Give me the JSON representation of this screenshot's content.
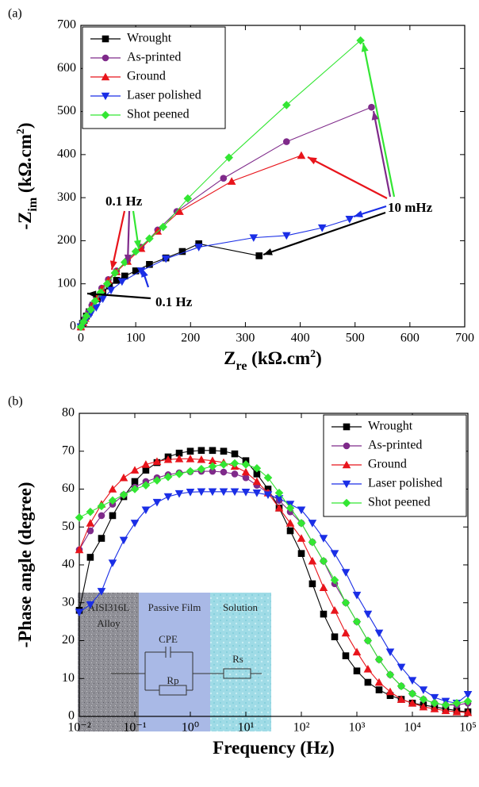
{
  "chart_data": [
    {
      "type": "scatter-line",
      "panel_label": "(a)",
      "x_label_parts": [
        "Z",
        "re",
        " (kΩ.cm",
        "2",
        ")"
      ],
      "y_label_parts": [
        "-Z",
        "im",
        " (kΩ.cm",
        "2",
        ")"
      ],
      "xlim": [
        0,
        700
      ],
      "ylim": [
        0,
        700
      ],
      "xticks": [
        0,
        100,
        200,
        300,
        400,
        500,
        600,
        700
      ],
      "yticks": [
        0,
        100,
        200,
        300,
        400,
        500,
        600,
        700
      ],
      "legend": "upper left",
      "annotations": [
        "0.1 Hz",
        "0.1 Hz",
        "10 mHz"
      ],
      "series": [
        {
          "name": "Wrought",
          "color": "#000000",
          "marker": "square",
          "x": [
            0,
            3,
            6,
            10,
            15,
            22,
            30,
            40,
            52,
            65,
            80,
            100,
            125,
            155,
            185,
            215,
            325
          ],
          "values": [
            0,
            8,
            15,
            25,
            35,
            50,
            65,
            80,
            95,
            108,
            118,
            130,
            145,
            160,
            175,
            193,
            165
          ]
        },
        {
          "name": "As-printed",
          "color": "#7f2a8a",
          "marker": "circle",
          "x": [
            0,
            4,
            8,
            14,
            20,
            28,
            38,
            50,
            65,
            85,
            110,
            140,
            175,
            260,
            375,
            530
          ],
          "values": [
            0,
            10,
            20,
            35,
            50,
            70,
            90,
            110,
            130,
            155,
            185,
            225,
            268,
            345,
            430,
            510
          ]
        },
        {
          "name": "Ground",
          "color": "#e8141b",
          "marker": "triangle-up",
          "x": [
            0,
            4,
            8,
            14,
            20,
            28,
            38,
            50,
            65,
            85,
            110,
            140,
            180,
            275,
            402
          ],
          "values": [
            0,
            10,
            20,
            34,
            48,
            67,
            88,
            108,
            128,
            152,
            182,
            222,
            268,
            338,
            398
          ]
        },
        {
          "name": "Laser polished",
          "color": "#1a2ee6",
          "marker": "triangle-down",
          "x": [
            0,
            5,
            10,
            18,
            28,
            40,
            55,
            75,
            110,
            155,
            215,
            315,
            375,
            440,
            490
          ],
          "values": [
            0,
            8,
            18,
            30,
            45,
            65,
            85,
            105,
            130,
            158,
            185,
            207,
            212,
            230,
            250
          ]
        },
        {
          "name": "Shot peened",
          "color": "#33e633",
          "marker": "diamond",
          "x": [
            0,
            5,
            10,
            18,
            26,
            36,
            48,
            62,
            80,
            100,
            125,
            150,
            195,
            270,
            375,
            510
          ],
          "values": [
            0,
            12,
            25,
            40,
            60,
            80,
            100,
            125,
            150,
            175,
            205,
            232,
            298,
            393,
            515,
            665
          ]
        }
      ]
    },
    {
      "type": "scatter-line",
      "panel_label": "(b)",
      "x_label_parts": [
        "Frequency (Hz)"
      ],
      "y_label_parts": [
        "-Phase angle (degree)"
      ],
      "xscale": "log",
      "xlim": [
        0.01,
        100000
      ],
      "ylim": [
        0,
        80
      ],
      "xticks": [
        {
          "value": 0.01,
          "label": "10⁻²"
        },
        {
          "value": 0.1,
          "label": "10⁻¹"
        },
        {
          "value": 1,
          "label": "10⁰"
        },
        {
          "value": 10,
          "label": "10¹"
        },
        {
          "value": 100,
          "label": "10²"
        },
        {
          "value": 1000,
          "label": "10³"
        },
        {
          "value": 10000,
          "label": "10⁴"
        },
        {
          "value": 100000,
          "label": "10⁵"
        }
      ],
      "yticks": [
        0,
        10,
        20,
        30,
        40,
        50,
        60,
        70,
        80
      ],
      "legend": "upper right",
      "inset": {
        "alloy": [
          "AISI316L",
          "Alloy"
        ],
        "film": "Passive Film",
        "solution": "Solution",
        "cpe": "CPE",
        "rs": "Rs",
        "rp": "Rp"
      },
      "x": [
        0.01,
        0.0158,
        0.0251,
        0.0398,
        0.0631,
        0.1,
        0.158,
        0.251,
        0.398,
        0.631,
        1,
        1.58,
        2.51,
        3.98,
        6.31,
        10,
        15.8,
        25.1,
        39.8,
        63.1,
        100,
        158,
        251,
        398,
        631,
        1000,
        1580,
        2510,
        3980,
        6310,
        10000,
        15800,
        25100,
        39800,
        63100,
        100000
      ],
      "series": [
        {
          "name": "Wrought",
          "color": "#000000",
          "marker": "square",
          "values": [
            28,
            42,
            47,
            53,
            58,
            62,
            65,
            67,
            68.5,
            69.5,
            70,
            70.2,
            70.2,
            70,
            69.3,
            67.5,
            64,
            60,
            55,
            49,
            43,
            35,
            27,
            21,
            16,
            12,
            9,
            7,
            5.5,
            4.5,
            3.5,
            3,
            2.5,
            2,
            1.5,
            1.2
          ]
        },
        {
          "name": "As-printed",
          "color": "#7f2a8a",
          "marker": "circle",
          "values": [
            44,
            49,
            53,
            56,
            58.5,
            60.5,
            62,
            63,
            63.8,
            64.3,
            64.6,
            64.7,
            64.7,
            64.5,
            64,
            63,
            61,
            59,
            57,
            54,
            51,
            46,
            41,
            35,
            30,
            25,
            20,
            15,
            11,
            8,
            6,
            4.5,
            3.5,
            3,
            3,
            3.5
          ]
        },
        {
          "name": "Ground",
          "color": "#e8141b",
          "marker": "triangle-up",
          "values": [
            44,
            51,
            56,
            60,
            63,
            65,
            66.5,
            67.3,
            67.8,
            68,
            68,
            67.8,
            67.5,
            67,
            66,
            64.5,
            62,
            59,
            55,
            51,
            47,
            41,
            34,
            28,
            22,
            17,
            12.5,
            9,
            6.5,
            4.5,
            3.5,
            2.5,
            2,
            1.5,
            1.2,
            1
          ]
        },
        {
          "name": "Laser polished",
          "color": "#1a2ee6",
          "marker": "triangle-down",
          "values": [
            27.5,
            29.5,
            33,
            40.5,
            46.5,
            51,
            54.5,
            56.5,
            58,
            58.8,
            59.2,
            59.3,
            59.3,
            59.3,
            59.3,
            59.2,
            59,
            58.5,
            57.5,
            56,
            54.5,
            51,
            47,
            43,
            38,
            32,
            27,
            22,
            17,
            13,
            9.5,
            7,
            5,
            4,
            3.5,
            5.8
          ]
        },
        {
          "name": "Shot peened",
          "color": "#33e633",
          "marker": "diamond",
          "values": [
            52.5,
            54,
            55.5,
            57,
            58.5,
            60,
            61,
            62.3,
            63.2,
            64,
            64.7,
            65.3,
            66,
            66.5,
            66.8,
            66.5,
            65.5,
            63,
            59,
            55,
            51,
            46,
            41,
            36,
            30,
            25,
            20,
            15,
            11,
            8,
            6,
            4.5,
            3.5,
            3,
            3.5,
            4
          ]
        }
      ]
    }
  ]
}
